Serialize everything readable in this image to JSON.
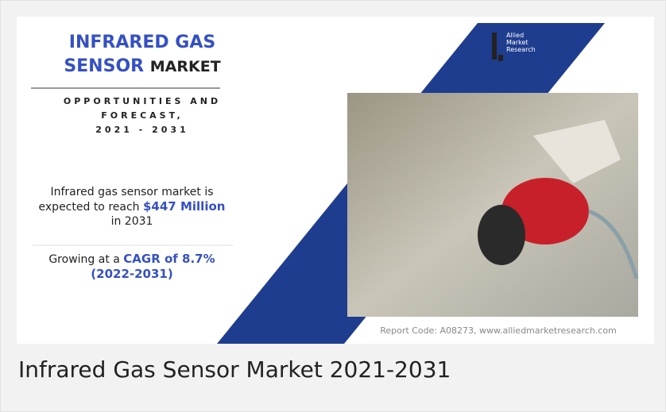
{
  "infographic": {
    "title_line1": "INFRARED GAS",
    "title_line2_highlight": "SENSOR",
    "title_line2_rest": "MARKET",
    "subtitle_lines": [
      "OPPORTUNITIES AND",
      "FORECAST,",
      "2021 - 2031"
    ],
    "market_text_before": "Infrared gas sensor market is expected to reach",
    "market_value": "$447 Million",
    "market_text_after": "in 2031",
    "growth_text_before": "Growing at a",
    "growth_highlight": "CAGR of 8.7%",
    "growth_period": "(2022-2031)",
    "logo_lines": [
      "Allied",
      "Market",
      "Research"
    ],
    "report_code": "Report Code: A08273, www.alliedmarketresearch.com"
  },
  "caption": "Infrared Gas Sensor Market 2021-2031"
}
